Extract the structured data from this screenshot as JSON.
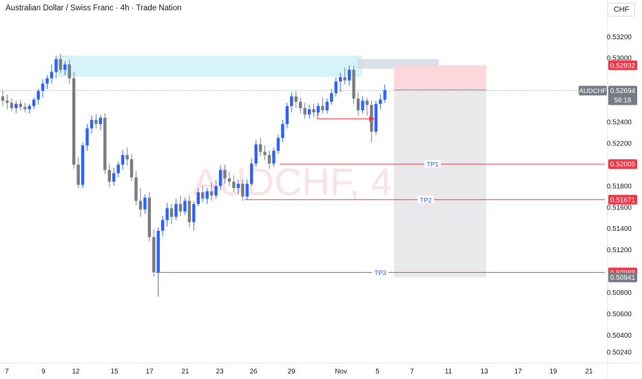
{
  "header": {
    "title": "Australian Dollar / Swiss Franc · 4h · Trade Nation",
    "currency_button": "CHF"
  },
  "colors": {
    "up": "#2962ff",
    "down": "#787b86",
    "level_line": "#f23645",
    "zone_cyan": "#d5f4fa",
    "stop_zone": "#fcd4d8",
    "target_zone": "#e9e9ec",
    "watermark": "#fbe3e5",
    "tp_label": "#2962ff"
  },
  "chart_data": {
    "type": "candlestick",
    "symbol": "AUDCHF",
    "timeframe": "4h",
    "watermark": "AUDCHF, 4h",
    "y_range": [
      0.5015,
      0.5348
    ],
    "y_ticks": [
      0.532,
      0.53,
      0.524,
      0.522,
      0.518,
      0.516,
      0.514,
      0.512,
      0.508,
      0.506,
      0.504,
      0.5024
    ],
    "y_tick_labels": [
      "0.53200",
      "0.53000",
      "0.52400",
      "0.52200",
      "0.51800",
      "0.51600",
      "0.51400",
      "0.51200",
      "0.50800",
      "0.50600",
      "0.50400",
      "0.50240"
    ],
    "x_tick_labels": [
      "7",
      "9",
      "12",
      "15",
      "17",
      "21",
      "23",
      "26",
      "29",
      "Nov",
      "5",
      "7",
      "11",
      "13",
      "17",
      "19",
      "21"
    ],
    "last_price": {
      "symbol_label": "AUDCHF",
      "value": "0.52694",
      "countdown": "56:16"
    },
    "price_tags": [
      {
        "value": "0.52932",
        "style": "red"
      },
      {
        "value": "0.52702",
        "style": "plain"
      },
      {
        "value": "0.52005",
        "style": "red"
      },
      {
        "value": "0.51671",
        "style": "red"
      },
      {
        "value": "0.50988",
        "style": "red"
      },
      {
        "value": "0.50941",
        "style": "grey"
      }
    ],
    "levels": [
      {
        "label": "TP1",
        "price": 0.52005
      },
      {
        "label": "TP2",
        "price": 0.51671
      },
      {
        "label": "TP3",
        "price": 0.50988
      }
    ],
    "supply_zone": [
      0.5283,
      0.5302
    ],
    "short_position": {
      "entry": 0.52702,
      "stop": 0.52932,
      "target": 0.50941
    },
    "candles": [
      [
        0.5264,
        0.527,
        0.5255,
        0.526
      ],
      [
        0.526,
        0.5266,
        0.5252,
        0.5258
      ],
      [
        0.5258,
        0.5262,
        0.525,
        0.5253
      ],
      [
        0.5253,
        0.526,
        0.5248,
        0.5257
      ],
      [
        0.5257,
        0.5261,
        0.5251,
        0.5254
      ],
      [
        0.5254,
        0.5258,
        0.5249,
        0.5252
      ],
      [
        0.5252,
        0.5257,
        0.5248,
        0.5255
      ],
      [
        0.5255,
        0.5263,
        0.5252,
        0.5261
      ],
      [
        0.5261,
        0.5271,
        0.5256,
        0.5269
      ],
      [
        0.5269,
        0.528,
        0.5263,
        0.5276
      ],
      [
        0.5276,
        0.5284,
        0.5271,
        0.5281
      ],
      [
        0.5281,
        0.5294,
        0.5276,
        0.5287
      ],
      [
        0.5287,
        0.5302,
        0.5281,
        0.5299
      ],
      [
        0.5299,
        0.5304,
        0.5286,
        0.5289
      ],
      [
        0.5289,
        0.5297,
        0.5284,
        0.5294
      ],
      [
        0.5294,
        0.5298,
        0.5276,
        0.5281
      ],
      [
        0.5281,
        0.5287,
        0.5196,
        0.52
      ],
      [
        0.52,
        0.5207,
        0.5178,
        0.5181
      ],
      [
        0.5181,
        0.5221,
        0.5178,
        0.5218
      ],
      [
        0.5218,
        0.5238,
        0.5213,
        0.5234
      ],
      [
        0.5234,
        0.5246,
        0.5229,
        0.5242
      ],
      [
        0.5242,
        0.5248,
        0.5234,
        0.5238
      ],
      [
        0.5238,
        0.5247,
        0.5232,
        0.5244
      ],
      [
        0.5244,
        0.5248,
        0.5191,
        0.5195
      ],
      [
        0.5195,
        0.5201,
        0.5179,
        0.5184
      ],
      [
        0.5184,
        0.5197,
        0.518,
        0.5192
      ],
      [
        0.5192,
        0.5203,
        0.5188,
        0.52
      ],
      [
        0.52,
        0.5214,
        0.5195,
        0.5209
      ],
      [
        0.5209,
        0.5216,
        0.5199,
        0.5205
      ],
      [
        0.5205,
        0.521,
        0.5184,
        0.5188
      ],
      [
        0.5188,
        0.5194,
        0.5162,
        0.5166
      ],
      [
        0.5166,
        0.5178,
        0.5151,
        0.5158
      ],
      [
        0.5158,
        0.5172,
        0.5154,
        0.5169
      ],
      [
        0.5169,
        0.5174,
        0.5128,
        0.5132
      ],
      [
        0.5132,
        0.5139,
        0.5095,
        0.5099
      ],
      [
        0.5099,
        0.5141,
        0.5076,
        0.5138
      ],
      [
        0.5138,
        0.5152,
        0.5133,
        0.5148
      ],
      [
        0.5148,
        0.5164,
        0.5142,
        0.5159
      ],
      [
        0.5159,
        0.5163,
        0.5144,
        0.5151
      ],
      [
        0.5151,
        0.5168,
        0.5148,
        0.5163
      ],
      [
        0.5163,
        0.5171,
        0.5152,
        0.5156
      ],
      [
        0.5156,
        0.5169,
        0.5153,
        0.5166
      ],
      [
        0.5166,
        0.5171,
        0.5141,
        0.5146
      ],
      [
        0.5146,
        0.5166,
        0.5138,
        0.5163
      ],
      [
        0.5163,
        0.5178,
        0.5161,
        0.5174
      ],
      [
        0.5174,
        0.518,
        0.5164,
        0.5168
      ],
      [
        0.5168,
        0.5178,
        0.5163,
        0.5175
      ],
      [
        0.5175,
        0.5183,
        0.5166,
        0.5171
      ],
      [
        0.5171,
        0.5185,
        0.5168,
        0.518
      ],
      [
        0.518,
        0.5199,
        0.5176,
        0.5195
      ],
      [
        0.5195,
        0.52,
        0.5182,
        0.5187
      ],
      [
        0.5187,
        0.5193,
        0.518,
        0.5184
      ],
      [
        0.5184,
        0.519,
        0.5174,
        0.5178
      ],
      [
        0.5178,
        0.5186,
        0.5172,
        0.5182
      ],
      [
        0.5182,
        0.5186,
        0.5166,
        0.517
      ],
      [
        0.517,
        0.5186,
        0.5167,
        0.5182
      ],
      [
        0.5182,
        0.5206,
        0.518,
        0.5201
      ],
      [
        0.5201,
        0.5223,
        0.5198,
        0.5219
      ],
      [
        0.5219,
        0.5225,
        0.5208,
        0.5212
      ],
      [
        0.5212,
        0.5218,
        0.5204,
        0.5209
      ],
      [
        0.5209,
        0.5213,
        0.5196,
        0.5201
      ],
      [
        0.5201,
        0.5216,
        0.5198,
        0.5213
      ],
      [
        0.5213,
        0.5228,
        0.521,
        0.5225
      ],
      [
        0.5225,
        0.5242,
        0.5221,
        0.5238
      ],
      [
        0.5238,
        0.5258,
        0.5234,
        0.5255
      ],
      [
        0.5255,
        0.5268,
        0.5249,
        0.5264
      ],
      [
        0.5264,
        0.5269,
        0.5253,
        0.5259
      ],
      [
        0.5259,
        0.5263,
        0.5248,
        0.5253
      ],
      [
        0.5253,
        0.5258,
        0.5243,
        0.5247
      ],
      [
        0.5247,
        0.5256,
        0.5243,
        0.5252
      ],
      [
        0.5252,
        0.5257,
        0.5245,
        0.5249
      ],
      [
        0.5249,
        0.5258,
        0.5246,
        0.5255
      ],
      [
        0.5255,
        0.5263,
        0.5248,
        0.5251
      ],
      [
        0.5251,
        0.5262,
        0.5248,
        0.5259
      ],
      [
        0.5259,
        0.5271,
        0.5256,
        0.5267
      ],
      [
        0.5267,
        0.5282,
        0.5264,
        0.5278
      ],
      [
        0.5278,
        0.5286,
        0.5268,
        0.5282
      ],
      [
        0.5282,
        0.5291,
        0.5275,
        0.5279
      ],
      [
        0.5279,
        0.5293,
        0.5274,
        0.5289
      ],
      [
        0.5289,
        0.5293,
        0.5257,
        0.5262
      ],
      [
        0.5262,
        0.5268,
        0.5246,
        0.5251
      ],
      [
        0.5251,
        0.5264,
        0.5248,
        0.526
      ],
      [
        0.526,
        0.5263,
        0.5246,
        0.5256
      ],
      [
        0.5256,
        0.526,
        0.5221,
        0.5231
      ],
      [
        0.5231,
        0.526,
        0.5228,
        0.5257
      ],
      [
        0.5257,
        0.5266,
        0.5252,
        0.5261
      ],
      [
        0.5261,
        0.5275,
        0.5258,
        0.527
      ]
    ]
  }
}
